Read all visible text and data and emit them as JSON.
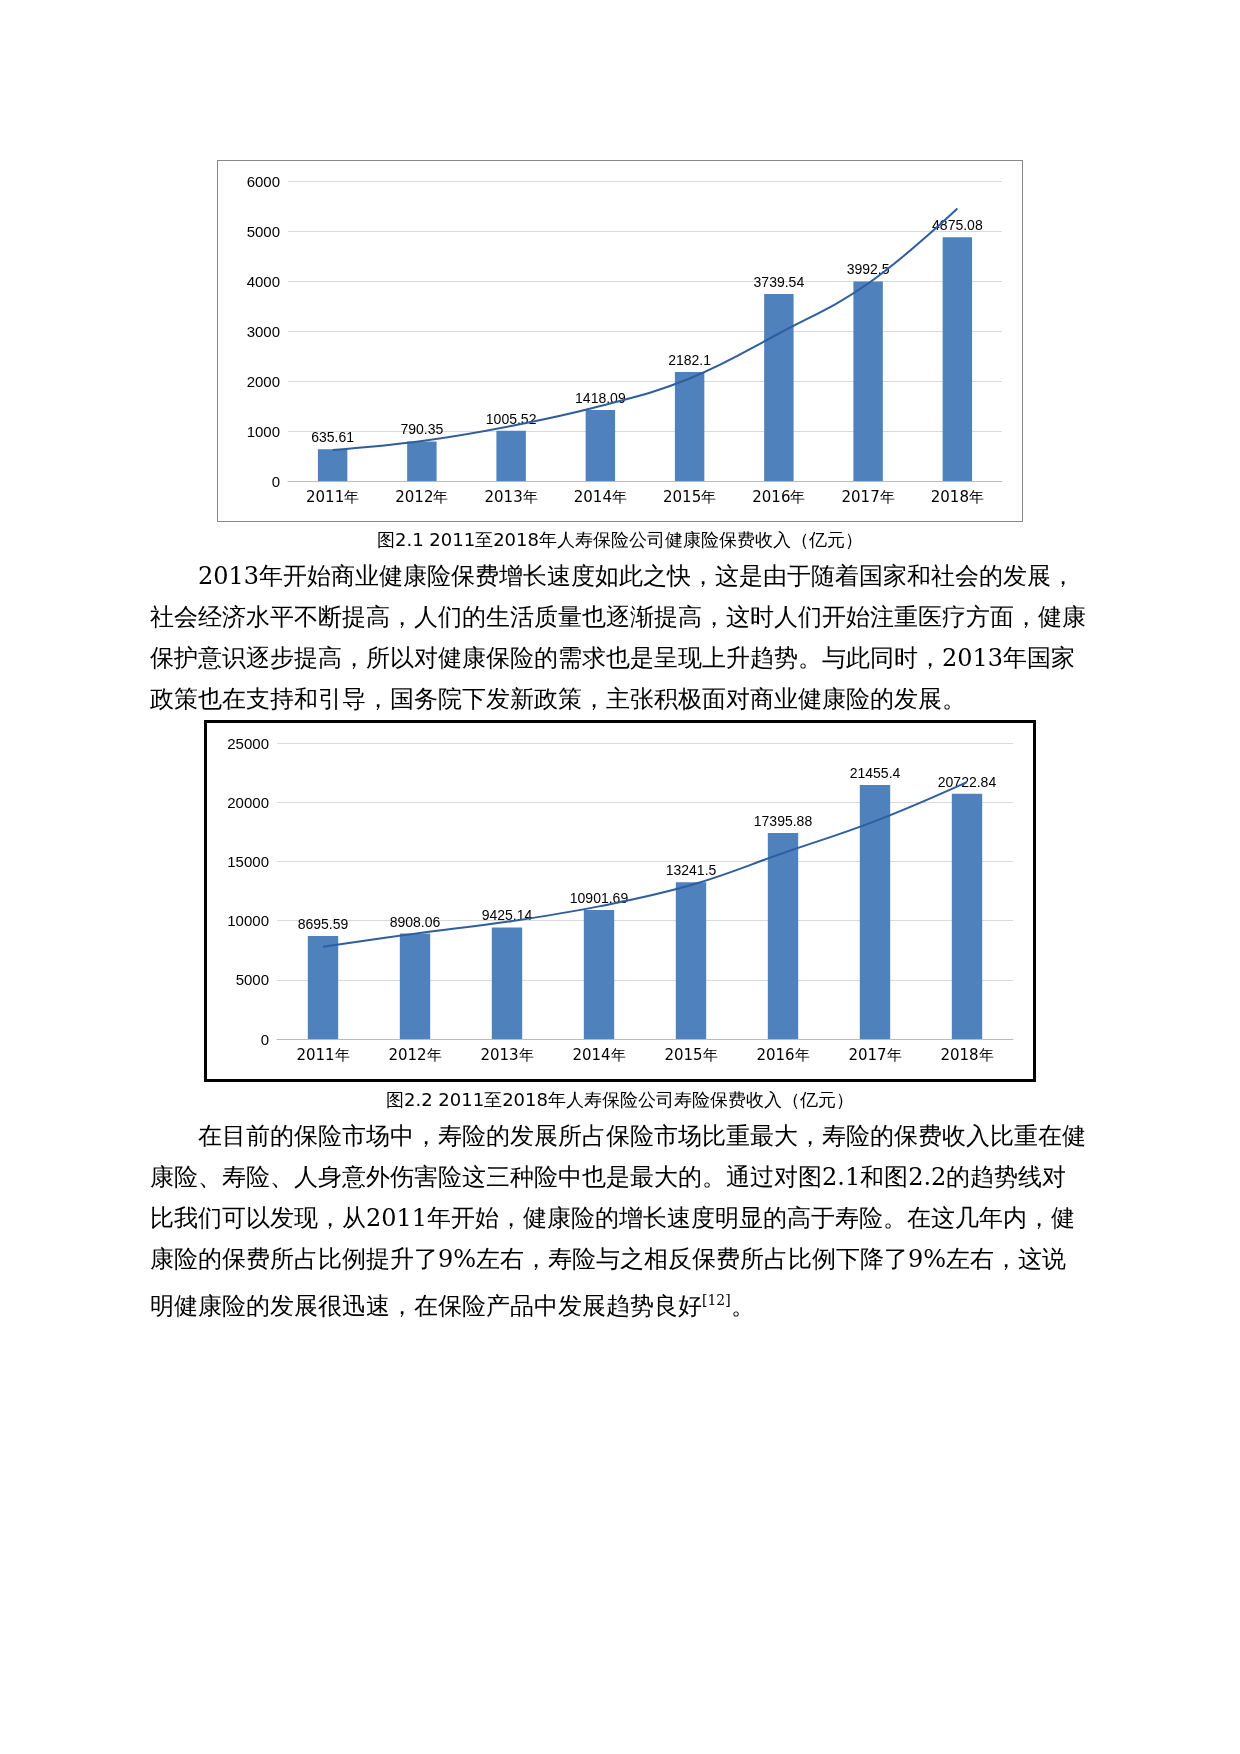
{
  "chart_data": [
    {
      "type": "bar",
      "title": "图2.1 2011至2018年人寿保险公司健康险保费收入（亿元）",
      "categories": [
        "2011年",
        "2012年",
        "2013年",
        "2014年",
        "2015年",
        "2016年",
        "2017年",
        "2018年"
      ],
      "series": [
        {
          "color": "#4f81bd",
          "values": [
            635.61,
            790.35,
            1005.52,
            1418.09,
            2182.1,
            3739.54,
            3992.5,
            4875.08
          ],
          "value_labels": [
            "635.61",
            "790.35",
            "1005.52",
            "1418.09",
            "2182.1",
            "3739.54",
            "3992.5",
            "4875.08"
          ]
        },
        {
          "type": "line",
          "color": "#2e5e9e",
          "values": [
            620,
            800,
            1100,
            1500,
            2050,
            2950,
            3950,
            5450
          ]
        }
      ],
      "ylim": [
        0,
        6000
      ],
      "yticks": [
        0,
        1000,
        2000,
        3000,
        4000,
        5000,
        6000
      ],
      "grid": "y",
      "marker": "none",
      "line_style": "solid",
      "annotations": [
        "2013年开始商业健康险保费增长速度如此之快，这是由于随着国家和社会的发展，社会经济水平不断提高，人们的生活质量也逐渐提高，这时人们开始注重医疗方面，健康保护意识逐步提高，所以对健康保险的需求也是呈现上升趋势。与此同时，2013年国家政策也在支持和引导，国务院下发新政策，主张积极面对商业健康险的发展。"
      ]
    },
    {
      "type": "bar",
      "title": "图2.2 2011至2018年人寿保险公司寿险保费收入（亿元）",
      "categories": [
        "2011年",
        "2012年",
        "2013年",
        "2014年",
        "2015年",
        "2016年",
        "2017年",
        "2018年"
      ],
      "series": [
        {
          "color": "#4f81bd",
          "values": [
            8695.59,
            8908.06,
            9425.14,
            10901.69,
            13241.5,
            17395.88,
            21455.4,
            20722.84
          ],
          "value_labels": [
            "8695.59",
            "8908.06",
            "9425.14",
            "10901.69",
            "13241.5",
            "17395.88",
            "21455.4",
            "20722.84"
          ]
        },
        {
          "type": "line",
          "color": "#2e5e9e",
          "values": [
            7800,
            8900,
            9900,
            11200,
            13000,
            15700,
            18400,
            21700
          ]
        }
      ],
      "ylim": [
        0,
        25000
      ],
      "yticks": [
        0,
        5000,
        10000,
        15000,
        20000,
        25000
      ],
      "grid": "y",
      "marker": "none",
      "line_style": "solid",
      "annotations": [
        "在目前的保险市场中，寿险的发展所占保险市场比重最大，寿险的保费收入比重在健康险、寿险、人身意外伤害险这三种险中也是最大的。通过对图2.1和图2.2的趋势线对比我们可以发现，从2011年开始，健康险的增长速度明显的高于寿险。在这几年内，健康险的保费所占比例提升了9%左右，寿险与之相反保费所占比例下降了9%左右，这说明健康险的发展很迅速，在保险产品中发展趋势良好$^{[12]}$。"
      ]
    }
  ]
}
